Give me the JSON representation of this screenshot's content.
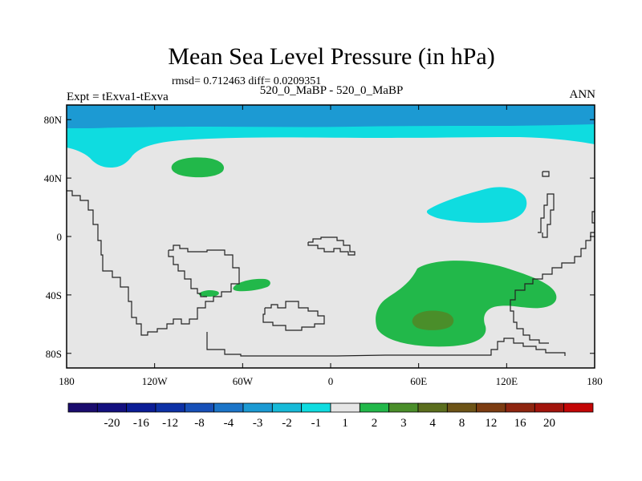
{
  "header": {
    "title": "Mean Sea Level Pressure (in hPa)",
    "stats": "rmsd= 0.712463 diff= 0.0209351",
    "subtitle": "520_0_MaBP - 520_0_MaBP",
    "left_label": "Expt = tExva1-tExva",
    "right_label": "ANN"
  },
  "chart_data": {
    "type": "heatmap",
    "title": "Mean Sea Level Pressure (in hPa)",
    "subtitle": "520_0_MaBP - 520_0_MaBP",
    "experiment": "Expt = tExva1-tExva",
    "season": "ANN",
    "rmsd": 0.712463,
    "diff": 0.0209351,
    "units": "hPa",
    "x_axis": {
      "range": [
        -180,
        180
      ],
      "ticks": [
        -180,
        -120,
        -60,
        0,
        60,
        120,
        180
      ],
      "tick_labels": [
        "180",
        "120W",
        "60W",
        "0",
        "60E",
        "120E",
        "180"
      ]
    },
    "y_axis": {
      "range": [
        -90,
        90
      ],
      "ticks": [
        80,
        40,
        0,
        -40,
        -80
      ],
      "tick_labels": [
        "80N",
        "40N",
        "0",
        "40S",
        "80S"
      ]
    },
    "colorbar": {
      "labels": [
        "-20",
        "-16",
        "-12",
        "-8",
        "-4",
        "-3",
        "-2",
        "-1",
        "1",
        "2",
        "3",
        "4",
        "8",
        "12",
        "16",
        "20"
      ],
      "colors": [
        "#1a0c6e",
        "#13107f",
        "#0b1d96",
        "#0d31a6",
        "#1750b8",
        "#1c75c8",
        "#1c9ad3",
        "#17bad8",
        "#0fdce0",
        "#e6e6e6",
        "#22b84a",
        "#4a8e2a",
        "#5b6e1e",
        "#6d5417",
        "#7c3c12",
        "#8e2510",
        "#a2140c",
        "#c30606"
      ]
    },
    "regions": [
      {
        "name": "arctic band",
        "level": "-3 to -2",
        "lat_range": [
          72,
          90
        ],
        "lon_range": [
          -180,
          180
        ]
      },
      {
        "name": "high-latitude north",
        "level": "-2 to -1",
        "lat_range": [
          48,
          72
        ],
        "lon_range": [
          -180,
          180
        ]
      },
      {
        "name": "north pacific low",
        "level": "-2 to -1",
        "lat": 30,
        "lon": 105
      },
      {
        "name": "north atlantic high",
        "level": "1 to 2",
        "lat": 47,
        "lon": -80
      },
      {
        "name": "south atlantic high",
        "level": "1 to 2",
        "lat": -32,
        "lon": -45
      },
      {
        "name": "southern ocean high",
        "level": "1 to 2",
        "lat": -55,
        "lon": 75
      },
      {
        "name": "southern ocean core",
        "level": "2 to 3",
        "lat": -60,
        "lon": 63
      }
    ]
  }
}
